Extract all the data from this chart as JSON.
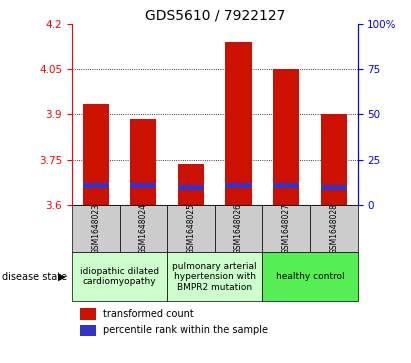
{
  "title": "GDS5610 / 7922127",
  "samples": [
    "GSM1648023",
    "GSM1648024",
    "GSM1648025",
    "GSM1648026",
    "GSM1648027",
    "GSM1648028"
  ],
  "red_top": [
    3.935,
    3.885,
    3.735,
    4.14,
    4.05,
    3.9
  ],
  "red_bottom": [
    3.6,
    3.6,
    3.6,
    3.6,
    3.6,
    3.6
  ],
  "blue_top": [
    3.672,
    3.672,
    3.668,
    3.672,
    3.672,
    3.668
  ],
  "blue_bottom": [
    3.655,
    3.655,
    3.651,
    3.655,
    3.655,
    3.651
  ],
  "ylim_left": [
    3.6,
    4.2
  ],
  "ylim_right": [
    0,
    100
  ],
  "yticks_left": [
    3.6,
    3.75,
    3.9,
    4.05,
    4.2
  ],
  "yticks_right": [
    0,
    25,
    50,
    75,
    100
  ],
  "bar_color_red": "#cc1100",
  "bar_color_blue": "#3333cc",
  "bar_width": 0.55,
  "disease_groups": [
    {
      "label": "idiopathic dilated\ncardiomyopathy",
      "start": 0,
      "end": 1,
      "color": "#ccffcc"
    },
    {
      "label": "pulmonary arterial\nhypertension with\nBMPR2 mutation",
      "start": 2,
      "end": 3,
      "color": "#ccffcc"
    },
    {
      "label": "healthy control",
      "start": 4,
      "end": 5,
      "color": "#55ee55"
    }
  ],
  "legend_red_label": "transformed count",
  "legend_blue_label": "percentile rank within the sample",
  "disease_state_label": "disease state",
  "title_fontsize": 10,
  "tick_fontsize": 7.5,
  "sample_fontsize": 5.5,
  "group_fontsize": 6.5,
  "legend_fontsize": 7
}
